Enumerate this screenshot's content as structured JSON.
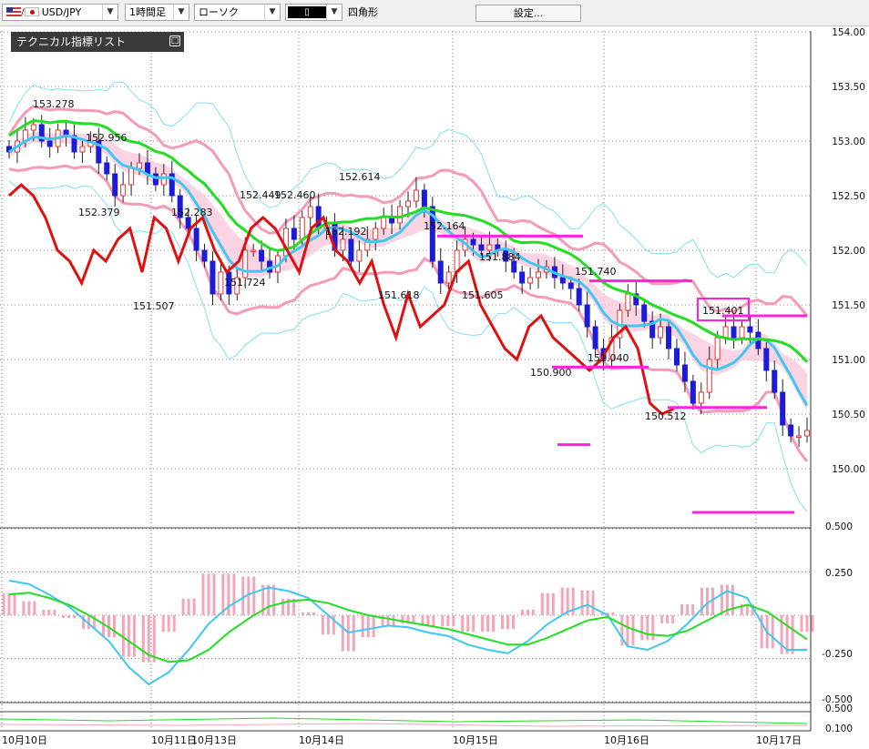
{
  "toolbar": {
    "symbol": "USD/JPY",
    "timeframe": "1時間足",
    "chart_style": "ローソク",
    "drawing_tool": "四角形",
    "settings_label": "設定..."
  },
  "indicator_list_label": "テクニカル指標リスト",
  "colors": {
    "bull_candle": "#e53535",
    "bear_candle": "#1b1bd8",
    "lagging_span": "#e01010",
    "sma_short": "#3ec8f0",
    "sma_long": "#22dd22",
    "bollinger_outer": "#7fe0f4",
    "bollinger_inner": "#f59ab8",
    "cloud": "#f9c6da",
    "marker": "#ff22dd",
    "macd_hist": "#f4a6b8"
  },
  "chart_data": [
    {
      "type": "candlestick",
      "symbol": "USD/JPY",
      "timeframe": "1H",
      "ylim": [
        149.5,
        154.0
      ],
      "y_ticks": [
        "154.00",
        "153.50",
        "153.00",
        "152.50",
        "152.00",
        "151.50",
        "151.00",
        "150.50",
        "150.00"
      ],
      "x_tick_labels": [
        "10月10日",
        "10月11日",
        "10月13日",
        "10月14日",
        "10月15日",
        "10月16日",
        "10月17日"
      ],
      "price_labels": [
        {
          "label": "153.278",
          "value": 153.278
        },
        {
          "label": "152.956",
          "value": 152.956
        },
        {
          "label": "152.379",
          "value": 152.379
        },
        {
          "label": "152.283",
          "value": 152.283
        },
        {
          "label": "151.507",
          "value": 151.507
        },
        {
          "label": "151.724",
          "value": 151.724
        },
        {
          "label": "152.449",
          "value": 152.449
        },
        {
          "label": "152.460",
          "value": 152.46
        },
        {
          "label": "152.614",
          "value": 152.614
        },
        {
          "label": "152.192",
          "value": 152.192
        },
        {
          "label": "151.618",
          "value": 151.618
        },
        {
          "label": "152.164",
          "value": 152.164
        },
        {
          "label": "151.884",
          "value": 151.884
        },
        {
          "label": "151.605",
          "value": 151.605
        },
        {
          "label": "150.900",
          "value": 150.9
        },
        {
          "label": "151.740",
          "value": 151.74
        },
        {
          "label": "151.040",
          "value": 151.04
        },
        {
          "label": "150.512",
          "value": 150.512
        },
        {
          "label": "151.401",
          "value": 151.401
        }
      ],
      "closes": [
        152.9,
        153.0,
        153.1,
        153.15,
        153.0,
        152.95,
        153.1,
        153.05,
        152.9,
        152.95,
        153.0,
        152.8,
        152.7,
        152.5,
        152.6,
        152.75,
        152.8,
        152.7,
        152.6,
        152.7,
        152.5,
        152.3,
        152.2,
        152.0,
        151.9,
        151.6,
        151.8,
        151.6,
        151.75,
        152.0,
        152.0,
        151.9,
        151.8,
        151.95,
        152.2,
        152.1,
        152.3,
        152.4,
        152.2,
        152.25,
        152.0,
        152.1,
        151.9,
        152.0,
        152.1,
        152.2,
        152.3,
        152.25,
        152.4,
        152.45,
        152.55,
        152.4,
        151.9,
        151.7,
        151.8,
        152.0,
        152.1,
        152.05,
        152.0,
        152.05,
        152.0,
        151.9,
        151.8,
        151.7,
        151.75,
        151.8,
        151.85,
        151.75,
        151.7,
        151.65,
        151.5,
        151.3,
        151.1,
        151.0,
        151.2,
        151.45,
        151.6,
        151.5,
        151.35,
        151.2,
        151.3,
        151.1,
        150.95,
        150.8,
        150.6,
        150.7,
        151.0,
        151.2,
        151.3,
        151.2,
        151.3,
        151.25,
        151.1,
        150.9,
        150.7,
        150.4,
        150.3,
        150.3,
        150.35
      ],
      "lagging_span": [
        152.5,
        152.6,
        152.5,
        152.3,
        152.0,
        151.9,
        151.7,
        152.0,
        151.9,
        152.1,
        152.2,
        151.8,
        152.3,
        152.2,
        151.9,
        152.2,
        152.3,
        152.0,
        151.8,
        151.9,
        152.2,
        152.3,
        152.2,
        152.0,
        151.8,
        152.2,
        152.3,
        152.0,
        151.9,
        151.7,
        151.9,
        151.5,
        151.2,
        151.6,
        151.3,
        151.4,
        151.5,
        151.8,
        151.9,
        151.5,
        151.3,
        151.1,
        151.0,
        151.3,
        151.4,
        151.2,
        151.1,
        151.0,
        150.9,
        151.0,
        151.2,
        151.3,
        151.1,
        150.6,
        150.5,
        150.55
      ],
      "markers": [
        {
          "level": 152.13
        },
        {
          "level": 151.72
        },
        {
          "level": 151.4
        },
        {
          "level": 150.93
        },
        {
          "level": 150.56
        },
        {
          "level": 150.22
        },
        {
          "level": 149.6
        }
      ]
    },
    {
      "type": "macd",
      "ylim": [
        -0.6,
        0.6
      ],
      "y_ticks": [
        "0.500",
        "0.250",
        "-0.250",
        "-0.500"
      ],
      "macd": [
        0.2,
        0.18,
        0.12,
        0.05,
        -0.05,
        -0.15,
        -0.3,
        -0.4,
        -0.33,
        -0.2,
        -0.05,
        0.05,
        0.12,
        0.16,
        0.14,
        0.1,
        0.0,
        -0.1,
        -0.08,
        -0.06,
        -0.07,
        -0.1,
        -0.12,
        -0.17,
        -0.2,
        -0.22,
        -0.15,
        -0.05,
        0.02,
        0.06,
        0.0,
        -0.18,
        -0.2,
        -0.15,
        -0.05,
        0.07,
        0.14,
        0.1,
        -0.1,
        -0.2,
        -0.2
      ],
      "signal": [
        0.12,
        0.13,
        0.1,
        0.06,
        0.0,
        -0.07,
        -0.15,
        -0.23,
        -0.27,
        -0.26,
        -0.2,
        -0.1,
        -0.02,
        0.05,
        0.08,
        0.09,
        0.07,
        0.03,
        0.0,
        -0.02,
        -0.04,
        -0.06,
        -0.08,
        -0.11,
        -0.14,
        -0.17,
        -0.17,
        -0.13,
        -0.08,
        -0.03,
        -0.01,
        -0.07,
        -0.11,
        -0.12,
        -0.09,
        -0.03,
        0.03,
        0.06,
        0.02,
        -0.06,
        -0.14
      ]
    },
    {
      "type": "line",
      "ylim": [
        0.0,
        0.6
      ],
      "y_ticks": [
        "0.500",
        "0.100"
      ]
    }
  ]
}
